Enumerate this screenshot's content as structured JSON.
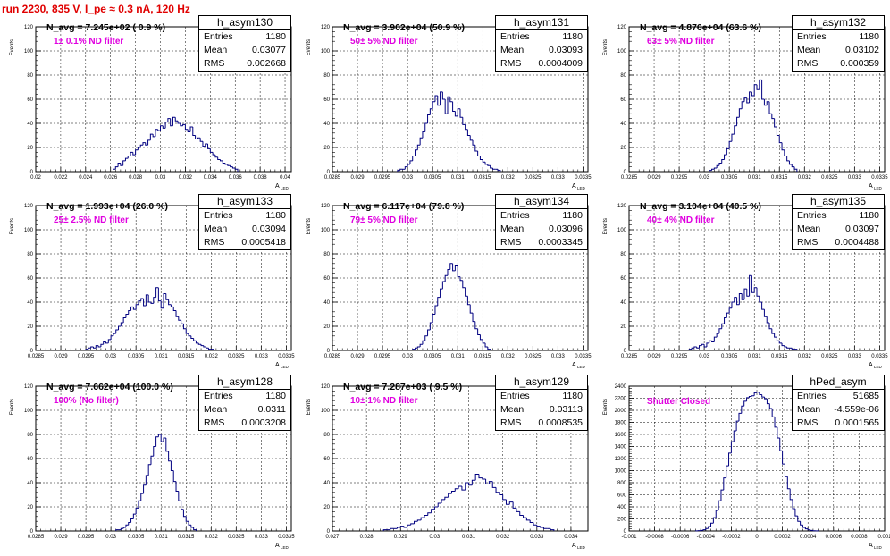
{
  "page_title": "run 2230,   835 V, I_pe ≈ 0.3 nA, 120 Hz",
  "stat_labels": {
    "entries": "Entries",
    "mean": "Mean",
    "rms": "RMS"
  },
  "chart_data": [
    {
      "type": "bar",
      "name": "h_asym130",
      "title": "N_avg = 7.245e+02 ( 0.9 %)",
      "filter": "1± 0.1% ND filter",
      "ylabel": "Events",
      "xlabel": "A",
      "xlabel_sub": "LED",
      "stats": {
        "entries": "1180",
        "mean": "0.03077",
        "rms": "0.002668"
      },
      "xlim": [
        0.02,
        0.0405
      ],
      "ylim": [
        0,
        120
      ],
      "xticks": [
        "0.02",
        "0.022",
        "0.024",
        "0.026",
        "0.028",
        "0.03",
        "0.032",
        "0.034",
        "0.036",
        "0.038",
        "0.04"
      ],
      "yticks": [
        "0",
        "20",
        "40",
        "60",
        "80",
        "100",
        "120"
      ],
      "bins_x": [
        0.0262,
        0.0264,
        0.0266,
        0.0268,
        0.027,
        0.0272,
        0.0274,
        0.0276,
        0.0278,
        0.028,
        0.0282,
        0.0284,
        0.0286,
        0.0288,
        0.029,
        0.0292,
        0.0294,
        0.0296,
        0.0298,
        0.03,
        0.0302,
        0.0304,
        0.0306,
        0.0308,
        0.031,
        0.0312,
        0.0314,
        0.0316,
        0.0318,
        0.032,
        0.0322,
        0.0324,
        0.0326,
        0.0328,
        0.033,
        0.0332,
        0.0334,
        0.0336,
        0.0338,
        0.034,
        0.0342,
        0.0344,
        0.0346,
        0.0348,
        0.035,
        0.0352,
        0.0354,
        0.0356,
        0.0358,
        0.036
      ],
      "bins_y": [
        2,
        4,
        7,
        5,
        9,
        11,
        13,
        16,
        14,
        18,
        20,
        22,
        24,
        22,
        26,
        31,
        29,
        35,
        34,
        38,
        36,
        41,
        44,
        38,
        45,
        42,
        40,
        38,
        39,
        35,
        33,
        37,
        30,
        27,
        28,
        25,
        21,
        23,
        19,
        16,
        14,
        12,
        10,
        9,
        7,
        6,
        5,
        4,
        3,
        2
      ]
    },
    {
      "type": "bar",
      "name": "h_asym131",
      "title": "N_avg = 3.902e+04 (50.9 %)",
      "filter": "50± 5% ND filter",
      "ylabel": "Events",
      "xlabel": "A",
      "xlabel_sub": "LED",
      "stats": {
        "entries": "1180",
        "mean": "0.03093",
        "rms": "0.0004009"
      },
      "xlim": [
        0.0285,
        0.0336
      ],
      "ylim": [
        0,
        120
      ],
      "xticks": [
        "0.0285",
        "0.029",
        "0.0295",
        "0.03",
        "0.0305",
        "0.031",
        "0.0315",
        "0.032",
        "0.0325",
        "0.033",
        "0.0335"
      ],
      "yticks": [
        "0",
        "20",
        "40",
        "60",
        "80",
        "100",
        "120"
      ],
      "bins_x": [
        0.0298,
        0.02985,
        0.0299,
        0.02995,
        0.03,
        0.03005,
        0.0301,
        0.03015,
        0.0302,
        0.03025,
        0.0303,
        0.03035,
        0.0304,
        0.03045,
        0.0305,
        0.03055,
        0.0306,
        0.03065,
        0.0307,
        0.03075,
        0.0308,
        0.03085,
        0.0309,
        0.03095,
        0.031,
        0.03105,
        0.0311,
        0.03115,
        0.0312,
        0.03125,
        0.0313,
        0.03135,
        0.0314,
        0.03145,
        0.0315,
        0.03155,
        0.0316,
        0.03165,
        0.0317,
        0.03175,
        0.0318
      ],
      "bins_y": [
        1,
        2,
        2,
        4,
        6,
        9,
        13,
        18,
        22,
        28,
        33,
        40,
        47,
        52,
        58,
        63,
        55,
        66,
        60,
        48,
        62,
        58,
        50,
        46,
        52,
        45,
        39,
        35,
        30,
        26,
        22,
        17,
        13,
        10,
        8,
        6,
        5,
        3,
        2,
        2,
        1
      ]
    },
    {
      "type": "bar",
      "name": "h_asym132",
      "title": "N_avg = 4.876e+04 (63.6 %)",
      "filter": "63± 5% ND filter",
      "ylabel": "Events",
      "xlabel": "A",
      "xlabel_sub": "LED",
      "stats": {
        "entries": "1180",
        "mean": "0.03102",
        "rms": "0.000359"
      },
      "xlim": [
        0.0285,
        0.0336
      ],
      "ylim": [
        0,
        120
      ],
      "xticks": [
        "0.0285",
        "0.029",
        "0.0295",
        "0.03",
        "0.0305",
        "0.031",
        "0.0315",
        "0.032",
        "0.0325",
        "0.033",
        "0.0335"
      ],
      "yticks": [
        "0",
        "20",
        "40",
        "60",
        "80",
        "100",
        "120"
      ],
      "bins_x": [
        0.0301,
        0.03015,
        0.0302,
        0.03025,
        0.0303,
        0.03035,
        0.0304,
        0.03045,
        0.0305,
        0.03055,
        0.0306,
        0.03065,
        0.0307,
        0.03075,
        0.0308,
        0.03085,
        0.0309,
        0.03095,
        0.031,
        0.03105,
        0.0311,
        0.03115,
        0.0312,
        0.03125,
        0.0313,
        0.03135,
        0.0314,
        0.03145,
        0.0315,
        0.03155,
        0.0316,
        0.03165,
        0.0317,
        0.03175,
        0.0318
      ],
      "bins_y": [
        1,
        2,
        3,
        5,
        7,
        10,
        14,
        19,
        25,
        31,
        38,
        45,
        52,
        58,
        61,
        57,
        66,
        63,
        72,
        68,
        76,
        60,
        55,
        58,
        48,
        44,
        37,
        30,
        24,
        18,
        13,
        9,
        6,
        4,
        2
      ]
    },
    {
      "type": "bar",
      "name": "h_asym133",
      "title": "N_avg = 1.993e+04 (26.0 %)",
      "filter": "25± 2.5% ND filter",
      "ylabel": "Events",
      "xlabel": "A",
      "xlabel_sub": "LED",
      "stats": {
        "entries": "1180",
        "mean": "0.03094",
        "rms": "0.0005418"
      },
      "xlim": [
        0.0285,
        0.0336
      ],
      "ylim": [
        0,
        120
      ],
      "xticks": [
        "0.0285",
        "0.029",
        "0.0295",
        "0.03",
        "0.0305",
        "0.031",
        "0.0315",
        "0.032",
        "0.0325",
        "0.033",
        "0.0335"
      ],
      "yticks": [
        "0",
        "20",
        "40",
        "60",
        "80",
        "100",
        "120"
      ],
      "bins_x": [
        0.0295,
        0.02955,
        0.0296,
        0.02965,
        0.0297,
        0.02975,
        0.0298,
        0.02985,
        0.0299,
        0.02995,
        0.03,
        0.03005,
        0.0301,
        0.03015,
        0.0302,
        0.03025,
        0.0303,
        0.03035,
        0.0304,
        0.03045,
        0.0305,
        0.03055,
        0.0306,
        0.03065,
        0.0307,
        0.03075,
        0.0308,
        0.03085,
        0.0309,
        0.03095,
        0.031,
        0.03105,
        0.0311,
        0.03115,
        0.0312,
        0.03125,
        0.0313,
        0.03135,
        0.0314,
        0.03145,
        0.0315,
        0.03155,
        0.0316,
        0.03165,
        0.0317,
        0.03175,
        0.0318,
        0.03185,
        0.0319,
        0.03195,
        0.032
      ],
      "bins_y": [
        1,
        2,
        3,
        2,
        4,
        3,
        5,
        7,
        6,
        9,
        12,
        14,
        17,
        20,
        23,
        27,
        30,
        33,
        36,
        34,
        38,
        41,
        43,
        37,
        46,
        40,
        39,
        44,
        52,
        41,
        35,
        47,
        42,
        38,
        36,
        33,
        28,
        25,
        22,
        18,
        14,
        12,
        10,
        8,
        6,
        5,
        4,
        3,
        2,
        1,
        1
      ]
    },
    {
      "type": "bar",
      "name": "h_asym134",
      "title": "N_avg = 6.117e+04 (79.8 %)",
      "filter": "79± 5% ND filter",
      "ylabel": "Events",
      "xlabel": "A",
      "xlabel_sub": "LED",
      "stats": {
        "entries": "1180",
        "mean": "0.03096",
        "rms": "0.0003345"
      },
      "xlim": [
        0.0285,
        0.0336
      ],
      "ylim": [
        0,
        120
      ],
      "xticks": [
        "0.0285",
        "0.029",
        "0.0295",
        "0.03",
        "0.0305",
        "0.031",
        "0.0315",
        "0.032",
        "0.0325",
        "0.033",
        "0.0335"
      ],
      "yticks": [
        "0",
        "20",
        "40",
        "60",
        "80",
        "100",
        "120"
      ],
      "bins_x": [
        0.0301,
        0.03015,
        0.0302,
        0.03025,
        0.0303,
        0.03035,
        0.0304,
        0.03045,
        0.0305,
        0.03055,
        0.0306,
        0.03065,
        0.0307,
        0.03075,
        0.0308,
        0.03085,
        0.0309,
        0.03095,
        0.031,
        0.03105,
        0.0311,
        0.03115,
        0.0312,
        0.03125,
        0.0313,
        0.03135,
        0.0314,
        0.03145,
        0.0315,
        0.03155,
        0.0316
      ],
      "bins_y": [
        1,
        2,
        3,
        5,
        8,
        12,
        17,
        23,
        30,
        37,
        44,
        51,
        57,
        62,
        67,
        72,
        66,
        70,
        61,
        58,
        52,
        45,
        38,
        31,
        24,
        18,
        13,
        9,
        6,
        3,
        1
      ]
    },
    {
      "type": "bar",
      "name": "h_asym135",
      "title": "N_avg = 3.104e+04 (40.5 %)",
      "filter": "40± 4% ND filter",
      "ylabel": "Events",
      "xlabel": "A",
      "xlabel_sub": "LED",
      "stats": {
        "entries": "1180",
        "mean": "0.03097",
        "rms": "0.0004488"
      },
      "xlim": [
        0.0285,
        0.0336
      ],
      "ylim": [
        0,
        120
      ],
      "xticks": [
        "0.0285",
        "0.029",
        "0.0295",
        "0.03",
        "0.0305",
        "0.031",
        "0.0315",
        "0.032",
        "0.0325",
        "0.033",
        "0.0335"
      ],
      "yticks": [
        "0",
        "20",
        "40",
        "60",
        "80",
        "100",
        "120"
      ],
      "bins_x": [
        0.0297,
        0.02975,
        0.0298,
        0.02985,
        0.0299,
        0.02995,
        0.03,
        0.03005,
        0.0301,
        0.03015,
        0.0302,
        0.03025,
        0.0303,
        0.03035,
        0.0304,
        0.03045,
        0.0305,
        0.03055,
        0.0306,
        0.03065,
        0.0307,
        0.03075,
        0.0308,
        0.03085,
        0.0309,
        0.03095,
        0.031,
        0.03105,
        0.0311,
        0.03115,
        0.0312,
        0.03125,
        0.0313,
        0.03135,
        0.0314,
        0.03145,
        0.0315,
        0.03155,
        0.0316,
        0.03165,
        0.0317,
        0.03175,
        0.0318
      ],
      "bins_y": [
        1,
        2,
        3,
        2,
        4,
        5,
        3,
        6,
        8,
        7,
        11,
        14,
        18,
        22,
        27,
        31,
        35,
        40,
        44,
        38,
        47,
        42,
        51,
        45,
        62,
        48,
        52,
        45,
        40,
        34,
        28,
        23,
        18,
        14,
        11,
        8,
        6,
        4,
        3,
        2,
        2,
        1,
        1
      ]
    },
    {
      "type": "bar",
      "name": "h_asym128",
      "title": "N_avg = 7.662e+04 (100.0 %)",
      "filter": "100% (No filter)",
      "ylabel": "Events",
      "xlabel": "A",
      "xlabel_sub": "LED",
      "stats": {
        "entries": "1180",
        "mean": "0.0311",
        "rms": "0.0003208"
      },
      "xlim": [
        0.0285,
        0.0336
      ],
      "ylim": [
        0,
        120
      ],
      "xticks": [
        "0.0285",
        "0.029",
        "0.0295",
        "0.03",
        "0.0305",
        "0.031",
        "0.0315",
        "0.032",
        "0.0325",
        "0.033",
        "0.0335"
      ],
      "yticks": [
        "0",
        "20",
        "40",
        "60",
        "80",
        "100",
        "120"
      ],
      "bins_x": [
        0.0301,
        0.03015,
        0.0302,
        0.03025,
        0.0303,
        0.03035,
        0.0304,
        0.03045,
        0.0305,
        0.03055,
        0.0306,
        0.03065,
        0.0307,
        0.03075,
        0.0308,
        0.03085,
        0.0309,
        0.03095,
        0.031,
        0.03105,
        0.0311,
        0.03115,
        0.0312,
        0.03125,
        0.0313,
        0.03135,
        0.0314,
        0.03145,
        0.0315,
        0.03155,
        0.0316,
        0.03165
      ],
      "bins_y": [
        1,
        1,
        2,
        3,
        5,
        7,
        10,
        14,
        19,
        25,
        31,
        38,
        46,
        55,
        62,
        70,
        78,
        80,
        74,
        77,
        66,
        58,
        50,
        41,
        33,
        25,
        18,
        12,
        8,
        5,
        3,
        1
      ]
    },
    {
      "type": "bar",
      "name": "h_asym129",
      "title": "N_avg = 7.287e+03 ( 9.5 %)",
      "filter": "10± 1% ND filter",
      "ylabel": "Events",
      "xlabel": "A",
      "xlabel_sub": "LED",
      "stats": {
        "entries": "1180",
        "mean": "0.03113",
        "rms": "0.0008535"
      },
      "xlim": [
        0.027,
        0.0345
      ],
      "ylim": [
        0,
        120
      ],
      "xticks": [
        "0.027",
        "0.028",
        "0.029",
        "0.03",
        "0.031",
        "0.032",
        "0.033",
        "0.034"
      ],
      "yticks": [
        "0",
        "20",
        "40",
        "60",
        "80",
        "100",
        "120"
      ],
      "bins_x": [
        0.0285,
        0.0286,
        0.0287,
        0.0288,
        0.0289,
        0.029,
        0.0291,
        0.0292,
        0.0293,
        0.0294,
        0.0295,
        0.0296,
        0.0297,
        0.0298,
        0.0299,
        0.03,
        0.0301,
        0.0302,
        0.0303,
        0.0304,
        0.0305,
        0.0306,
        0.0307,
        0.0308,
        0.0309,
        0.031,
        0.0311,
        0.0312,
        0.0313,
        0.0314,
        0.0315,
        0.0316,
        0.0317,
        0.0318,
        0.0319,
        0.032,
        0.0321,
        0.0322,
        0.0323,
        0.0324,
        0.0325,
        0.0326,
        0.0327,
        0.0328,
        0.0329,
        0.033,
        0.0331,
        0.0332,
        0.0333,
        0.0334
      ],
      "bins_y": [
        1,
        1,
        2,
        2,
        3,
        4,
        3,
        5,
        6,
        8,
        9,
        11,
        13,
        15,
        18,
        20,
        23,
        26,
        28,
        31,
        33,
        35,
        37,
        34,
        40,
        38,
        42,
        47,
        44,
        43,
        39,
        41,
        36,
        32,
        30,
        26,
        22,
        24,
        19,
        16,
        13,
        11,
        9,
        7,
        5,
        4,
        3,
        2,
        2,
        1
      ]
    },
    {
      "type": "bar",
      "name": "hPed_asym",
      "title": "",
      "filter": "Shutter Closed",
      "ylabel": "Events",
      "xlabel": "A",
      "xlabel_sub": "LED",
      "stats": {
        "entries": "51685",
        "mean": "-4.559e-06",
        "rms": "0.0001565"
      },
      "xlim": [
        -0.001,
        0.001
      ],
      "ylim": [
        0,
        2400
      ],
      "xticks": [
        "-0.001",
        "-0.0008",
        "-0.0006",
        "-0.0004",
        "-0.0002",
        "0",
        "0.0002",
        "0.0004",
        "0.0006",
        "0.0008",
        "0.001"
      ],
      "yticks": [
        "0",
        "200",
        "400",
        "600",
        "800",
        "1000",
        "1200",
        "1400",
        "1600",
        "1800",
        "2000",
        "2200",
        "2400"
      ],
      "bins_x": [
        -0.00048,
        -0.00046,
        -0.00044,
        -0.00042,
        -0.0004,
        -0.00038,
        -0.00036,
        -0.00034,
        -0.00032,
        -0.0003,
        -0.00028,
        -0.00026,
        -0.00024,
        -0.00022,
        -0.0002,
        -0.00018,
        -0.00016,
        -0.00014,
        -0.00012,
        -0.0001,
        -8e-05,
        -6e-05,
        -4e-05,
        -2e-05,
        0,
        2e-05,
        4e-05,
        6e-05,
        8e-05,
        0.0001,
        0.00012,
        0.00014,
        0.00016,
        0.00018,
        0.0002,
        0.00022,
        0.00024,
        0.00026,
        0.00028,
        0.0003,
        0.00032,
        0.00034,
        0.00036,
        0.00038,
        0.0004,
        0.00042,
        0.00044,
        0.00046
      ],
      "bins_y": [
        2,
        5,
        10,
        20,
        40,
        75,
        130,
        220,
        340,
        500,
        680,
        880,
        1080,
        1290,
        1480,
        1660,
        1820,
        1950,
        2070,
        2150,
        2210,
        2230,
        2240,
        2290,
        2300,
        2260,
        2220,
        2190,
        2110,
        2030,
        1890,
        1720,
        1540,
        1330,
        1110,
        900,
        700,
        520,
        370,
        250,
        160,
        100,
        60,
        35,
        18,
        9,
        4,
        2
      ]
    }
  ]
}
